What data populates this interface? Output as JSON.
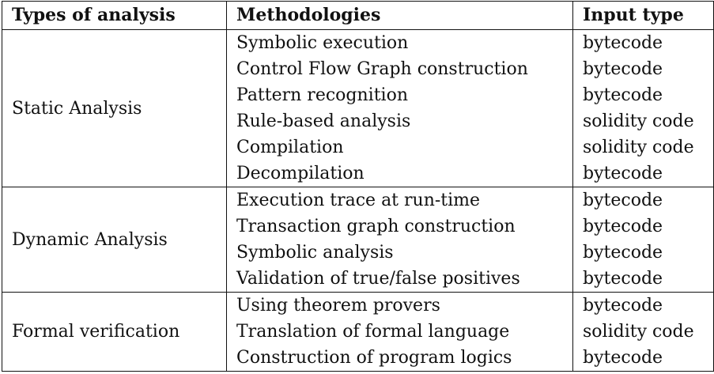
{
  "table": {
    "headers": [
      "Types of analysis",
      "Methodologies",
      "Input type"
    ],
    "groups": [
      {
        "type": "Static Analysis",
        "rows": [
          {
            "methodology": "Symbolic execution",
            "input": "bytecode"
          },
          {
            "methodology": "Control Flow Graph construction",
            "input": "bytecode"
          },
          {
            "methodology": "Pattern recognition",
            "input": "bytecode"
          },
          {
            "methodology": "Rule-based analysis",
            "input": "solidity code"
          },
          {
            "methodology": "Compilation",
            "input": "solidity code"
          },
          {
            "methodology": "Decompilation",
            "input": "bytecode"
          }
        ]
      },
      {
        "type": "Dynamic Analysis",
        "rows": [
          {
            "methodology": "Execution trace at run-time",
            "input": "bytecode"
          },
          {
            "methodology": "Transaction graph construction",
            "input": "bytecode"
          },
          {
            "methodology": "Symbolic analysis",
            "input": "bytecode"
          },
          {
            "methodology": "Validation of true/false positives",
            "input": "bytecode"
          }
        ]
      },
      {
        "type": "Formal verification",
        "rows": [
          {
            "methodology": "Using theorem provers",
            "input": "bytecode"
          },
          {
            "methodology": "Translation of formal language",
            "input": "solidity code"
          },
          {
            "methodology": "Construction of program logics",
            "input": "bytecode"
          }
        ]
      }
    ]
  }
}
